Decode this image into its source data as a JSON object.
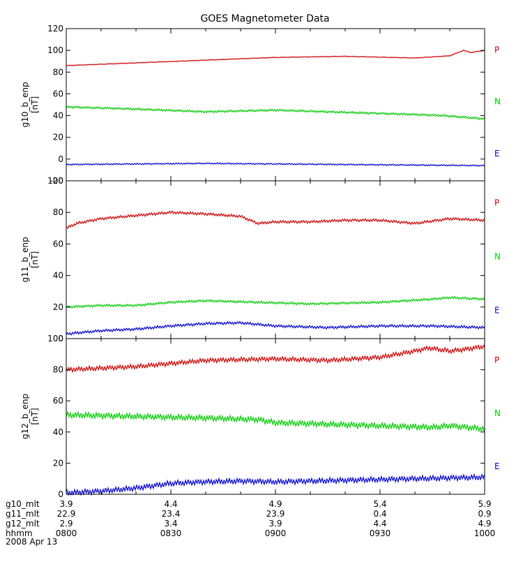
{
  "title": "GOES Magnetometer Data",
  "colors": {
    "P": "#cc0000",
    "N": "#00cc00",
    "E": "#0000cc",
    "axis": "#000000"
  },
  "chart_data": [
    {
      "type": "line",
      "panel": "g10",
      "ylabel": "g10_b_enp",
      "unit": "[nT]",
      "ylim": [
        -20,
        120
      ],
      "yticks": [
        -20,
        0,
        20,
        40,
        60,
        80,
        100,
        120
      ],
      "xlim": [
        0,
        120
      ],
      "legend": [
        "P",
        "N",
        "E"
      ],
      "series": [
        {
          "name": "P",
          "color_key": "P",
          "wiggle": 0.3,
          "x": [
            0,
            20,
            40,
            60,
            80,
            100,
            110,
            114,
            116,
            120
          ],
          "y": [
            86,
            88.5,
            91,
            93.5,
            94.5,
            93,
            95,
            100,
            98,
            100
          ]
        },
        {
          "name": "N",
          "color_key": "N",
          "wiggle": 0.8,
          "x": [
            0,
            20,
            40,
            60,
            80,
            100,
            108,
            120
          ],
          "y": [
            48,
            46,
            43.5,
            45,
            43,
            41,
            40,
            37
          ]
        },
        {
          "name": "E",
          "color_key": "E",
          "wiggle": 0.5,
          "x": [
            0,
            40,
            80,
            120
          ],
          "y": [
            -5,
            -4,
            -5,
            -6
          ]
        }
      ]
    },
    {
      "type": "line",
      "panel": "g11",
      "ylabel": "g11_b_enp",
      "unit": "[nT]",
      "ylim": [
        0,
        100
      ],
      "yticks": [
        0,
        20,
        40,
        60,
        80,
        100
      ],
      "xlim": [
        0,
        120
      ],
      "legend": [
        "P",
        "N",
        "E"
      ],
      "series": [
        {
          "name": "P",
          "color_key": "P",
          "wiggle": 0.7,
          "x": [
            0,
            3,
            10,
            20,
            30,
            40,
            50,
            55,
            60,
            70,
            80,
            90,
            100,
            110,
            120
          ],
          "y": [
            70,
            73,
            76,
            78,
            80,
            79,
            77.5,
            73,
            74,
            74,
            75,
            75,
            73,
            76,
            75
          ]
        },
        {
          "name": "N",
          "color_key": "N",
          "wiggle": 0.6,
          "x": [
            0,
            10,
            20,
            30,
            40,
            55,
            70,
            90,
            105,
            110,
            120
          ],
          "y": [
            20,
            21,
            21,
            23,
            24,
            23,
            22,
            23,
            25,
            26,
            25
          ]
        },
        {
          "name": "E",
          "color_key": "E",
          "wiggle": 0.7,
          "x": [
            0,
            10,
            20,
            30,
            40,
            50,
            60,
            75,
            90,
            105,
            120
          ],
          "y": [
            3,
            5,
            6,
            8,
            9.5,
            10,
            8,
            7,
            8,
            8,
            7
          ]
        }
      ]
    },
    {
      "type": "line",
      "panel": "g12",
      "ylabel": "g12_b_enp",
      "unit": "[nT]",
      "ylim": [
        0,
        100
      ],
      "yticks": [
        0,
        20,
        40,
        60,
        80,
        100
      ],
      "xlim": [
        0,
        120
      ],
      "legend": [
        "P",
        "N",
        "E"
      ],
      "series": [
        {
          "name": "P",
          "color_key": "P",
          "wiggle": 1.2,
          "x": [
            0,
            20,
            40,
            60,
            75,
            90,
            100,
            104,
            110,
            114,
            120
          ],
          "y": [
            80,
            82,
            86,
            87,
            86,
            88,
            92,
            94,
            92,
            93,
            95
          ]
        },
        {
          "name": "N",
          "color_key": "N",
          "wiggle": 1.5,
          "x": [
            0,
            20,
            40,
            55,
            60,
            75,
            90,
            105,
            110,
            120
          ],
          "y": [
            51,
            50,
            49,
            48,
            46,
            45,
            44,
            43,
            44,
            42
          ]
        },
        {
          "name": "E",
          "color_key": "E",
          "wiggle": 1.4,
          "x": [
            0,
            10,
            20,
            30,
            40,
            50,
            60,
            80,
            100,
            120
          ],
          "y": [
            1,
            2,
            4,
            7,
            8,
            8.5,
            8,
            9,
            10,
            11
          ]
        }
      ]
    }
  ],
  "x_axis": {
    "positions": [
      0,
      30,
      60,
      90,
      120
    ],
    "rows": [
      {
        "label": "g10_mlt",
        "values": [
          "3.9",
          "4.4",
          "4.9",
          "5.4",
          "5.9"
        ]
      },
      {
        "label": "g11_mlt",
        "values": [
          "22.9",
          "23.4",
          "23.9",
          "0.4",
          "0.9"
        ]
      },
      {
        "label": "g12_mlt",
        "values": [
          "2.9",
          "3.4",
          "3.9",
          "4.4",
          "4.9"
        ]
      },
      {
        "label": "hhmm",
        "values": [
          "0800",
          "0830",
          "0900",
          "0930",
          "1000"
        ]
      }
    ],
    "date": "2008 Apr 13"
  }
}
